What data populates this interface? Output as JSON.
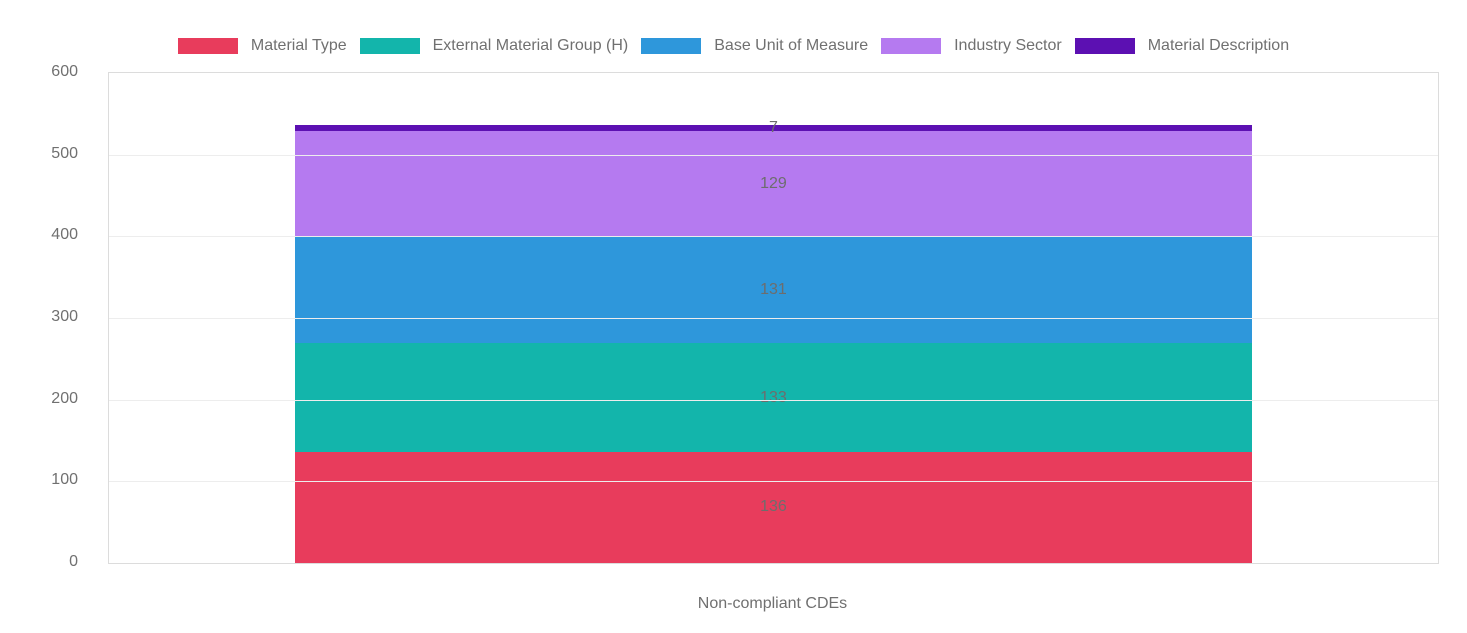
{
  "chart_data": {
    "type": "bar",
    "stacked": true,
    "categories": [
      "Non-compliant CDEs"
    ],
    "series": [
      {
        "name": "Material Type",
        "values": [
          136
        ],
        "color": "#E83C5C"
      },
      {
        "name": "External Material Group (H)",
        "values": [
          133
        ],
        "color": "#13B5AB"
      },
      {
        "name": "Base Unit of Measure",
        "values": [
          131
        ],
        "color": "#2E97DB"
      },
      {
        "name": "Industry Sector",
        "values": [
          129
        ],
        "color": "#B57AF0"
      },
      {
        "name": "Material Description",
        "values": [
          7
        ],
        "color": "#5C10B2"
      }
    ],
    "data_labels": [
      136,
      133,
      131,
      129,
      7
    ],
    "title": "",
    "xlabel": "Non-compliant CDEs",
    "ylabel": "",
    "ylim": [
      0,
      600
    ],
    "yticks": [
      0,
      100,
      200,
      300,
      400,
      500,
      600
    ],
    "legend_position": "top",
    "grid": true
  },
  "style": {
    "text_color": "#707070",
    "data_label_color": "#6d6d6d",
    "grid_color": "#ededed",
    "axis_border_color": "#dcdcdc",
    "background": "#ffffff"
  }
}
